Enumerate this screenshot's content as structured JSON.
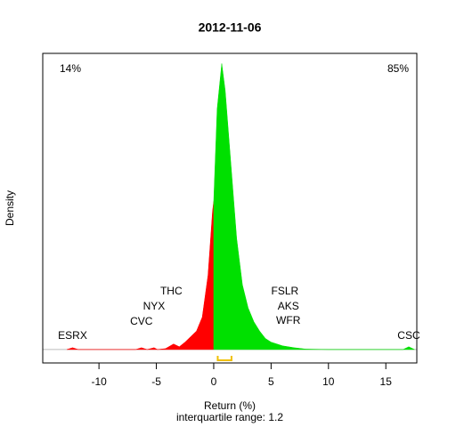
{
  "chart_data": {
    "type": "density",
    "title": "2012-11-06",
    "xlabel": "Return (%)",
    "subtitle": "interquartile range: 1.2",
    "ylabel": "Density",
    "negative_share": "14%",
    "positive_share": "85%",
    "negative_color": "#ff0000",
    "positive_color": "#00e000",
    "iqr_color": "#f0c000",
    "x": [
      -12.8,
      -12.3,
      -11.8,
      -6.8,
      -6.3,
      -5.8,
      -5.5,
      -5.2,
      -4.9,
      -4.2,
      -3.5,
      -3.0,
      -2.5,
      -2.0,
      -1.5,
      -1.0,
      -0.5,
      -0.1,
      0,
      0.3,
      0.7,
      1.0,
      1.5,
      2.0,
      2.5,
      3.0,
      3.5,
      4.0,
      4.5,
      5.0,
      6.0,
      7.0,
      8.0,
      10.0,
      16.5,
      17.0,
      17.5
    ],
    "values": [
      0,
      0.002,
      0,
      0,
      0.002,
      0,
      0.001,
      0.002,
      0,
      0.001,
      0.006,
      0.003,
      0.008,
      0.014,
      0.02,
      0.035,
      0.08,
      0.15,
      0.16,
      0.26,
      0.309,
      0.28,
      0.2,
      0.12,
      0.07,
      0.045,
      0.03,
      0.02,
      0.012,
      0.008,
      0.004,
      0.002,
      0.0005,
      0,
      0,
      0.003,
      0
    ],
    "iqr": [
      0.35,
      1.55
    ],
    "xlim": [
      -14.9,
      17.7
    ],
    "ylim": [
      -0.0145,
      0.32
    ],
    "xticks": [
      -10,
      -5,
      0,
      5,
      10,
      15
    ],
    "annotations": [
      {
        "text": "ESRX",
        "x": -12.3
      },
      {
        "text": "CVC",
        "x": -6.3
      },
      {
        "text": "NYX",
        "x": -5.2
      },
      {
        "text": "THC",
        "x": -3.7
      },
      {
        "text": "FSLR",
        "x": 6.2
      },
      {
        "text": "AKS",
        "x": 6.5
      },
      {
        "text": "WFR",
        "x": 6.5
      },
      {
        "text": "CSC",
        "x": 17.0
      }
    ]
  }
}
